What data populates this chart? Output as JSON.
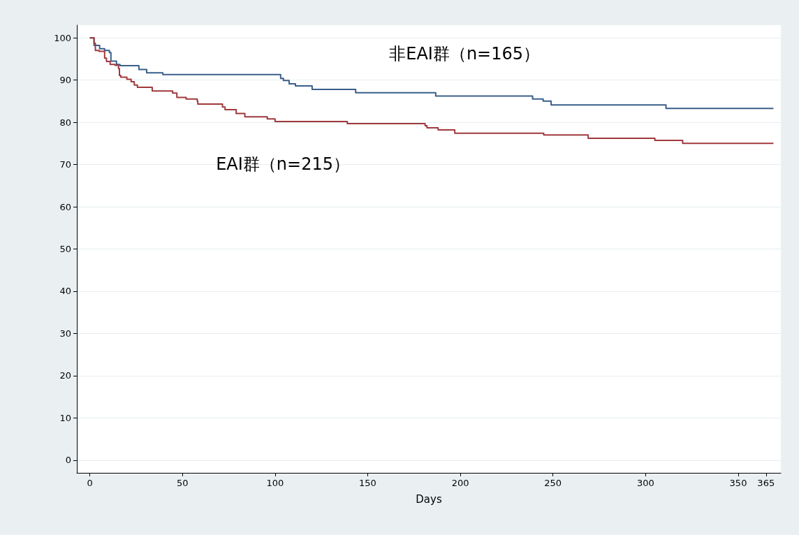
{
  "chart_data": {
    "type": "step",
    "xlabel": "Days",
    "xlim": [
      -7,
      373
    ],
    "xticks": [
      0,
      50,
      100,
      150,
      200,
      250,
      300,
      350,
      365
    ],
    "ylim": [
      -3,
      103
    ],
    "yticks": [
      0,
      10,
      20,
      30,
      40,
      50,
      60,
      70,
      80,
      90,
      100
    ],
    "grid": "y",
    "marker": "none",
    "line_style": "solid",
    "series": [
      {
        "name": "非EAI群（n=165）",
        "color": "#3a5f8a",
        "x": [
          0,
          2.3,
          5.3,
          8,
          10.6,
          11.4,
          14.4,
          16.3,
          26.5,
          30.7,
          39.4,
          103,
          104.5,
          107.6,
          111,
          120,
          143.5,
          186.7,
          239,
          244.7,
          249,
          311,
          369
        ],
        "values": [
          100,
          98.2,
          97.4,
          97,
          96.5,
          94.5,
          93.7,
          93.4,
          92.5,
          91.7,
          91.3,
          90.4,
          89.9,
          89.1,
          88.6,
          87.8,
          87,
          86.2,
          85.5,
          85,
          84.1,
          83.3,
          83.3
        ]
      },
      {
        "name": "EAI群（n=215）",
        "color": "#a0393d",
        "x": [
          0,
          2.3,
          3,
          5,
          8,
          9,
          11,
          13.6,
          15.5,
          16,
          16.7,
          20,
          22.3,
          24,
          25.7,
          33.7,
          44.7,
          47,
          52,
          58,
          58.3,
          71.6,
          73,
          79,
          83.7,
          95.8,
          100,
          139,
          181,
          182,
          188,
          197,
          245,
          269,
          305,
          320,
          369
        ],
        "values": [
          100,
          98.7,
          97,
          96.8,
          95.2,
          94.4,
          93.7,
          93.5,
          92.7,
          91.1,
          90.7,
          90.2,
          89.6,
          88.8,
          88.3,
          87.4,
          86.9,
          85.9,
          85.5,
          85,
          84.3,
          83.6,
          83,
          82.1,
          81.3,
          80.8,
          80.2,
          79.7,
          79.2,
          78.7,
          78.2,
          77.4,
          77,
          76.2,
          75.7,
          75,
          75
        ]
      }
    ]
  }
}
